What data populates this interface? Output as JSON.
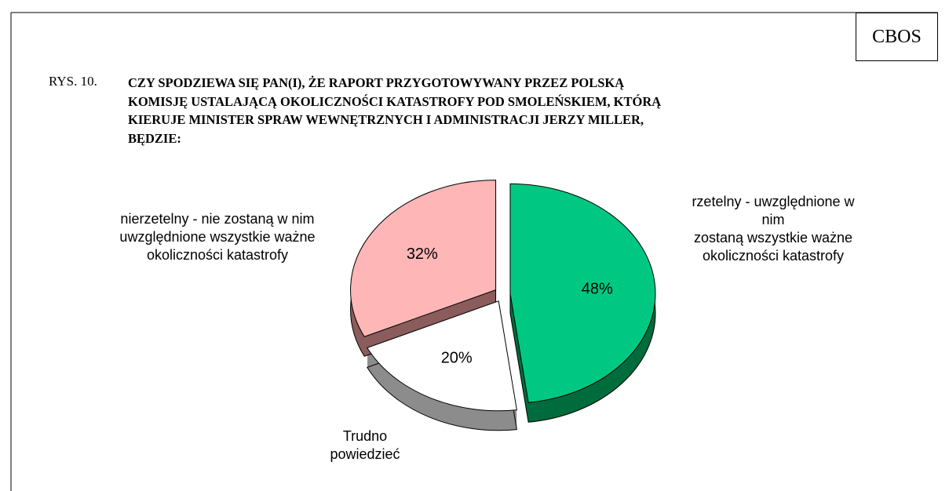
{
  "brand": "CBOS",
  "chart_data": {
    "type": "pie",
    "figure_label": "RYS. 10.",
    "title": "CZY SPODZIEWA SIĘ PAN(I), ŻE RAPORT PRZYGOTOWYWANY PRZEZ POLSKĄ\nKOMISJĘ USTALAJĄCĄ OKOLICZNOŚCI KATASTROFY POD SMOLEŃSKIEM, KTÓRĄ\nKIERUJE MINISTER SPRAW WEWNĘTRZNYCH I ADMINISTRACJI JERZY MILLER,\nBĘDZIE:",
    "categories": [
      "rzetelny - uwzględnione w nim\nzostaną wszystkie ważne\nokoliczności katastrofy",
      "Trudno\npowiedzieć",
      "nierzetelny - nie zostaną w nim\nuwzględnione wszystkie ważne\nokoliczności katastrofy"
    ],
    "values": [
      48,
      20,
      32
    ],
    "value_labels": [
      "48%",
      "20%",
      "32%"
    ],
    "colors": [
      "#00c882",
      "#ffffff",
      "#ffb6b6"
    ],
    "side_colors": [
      "#006b3c",
      "#8c8c8c",
      "#8a5c5c"
    ]
  }
}
